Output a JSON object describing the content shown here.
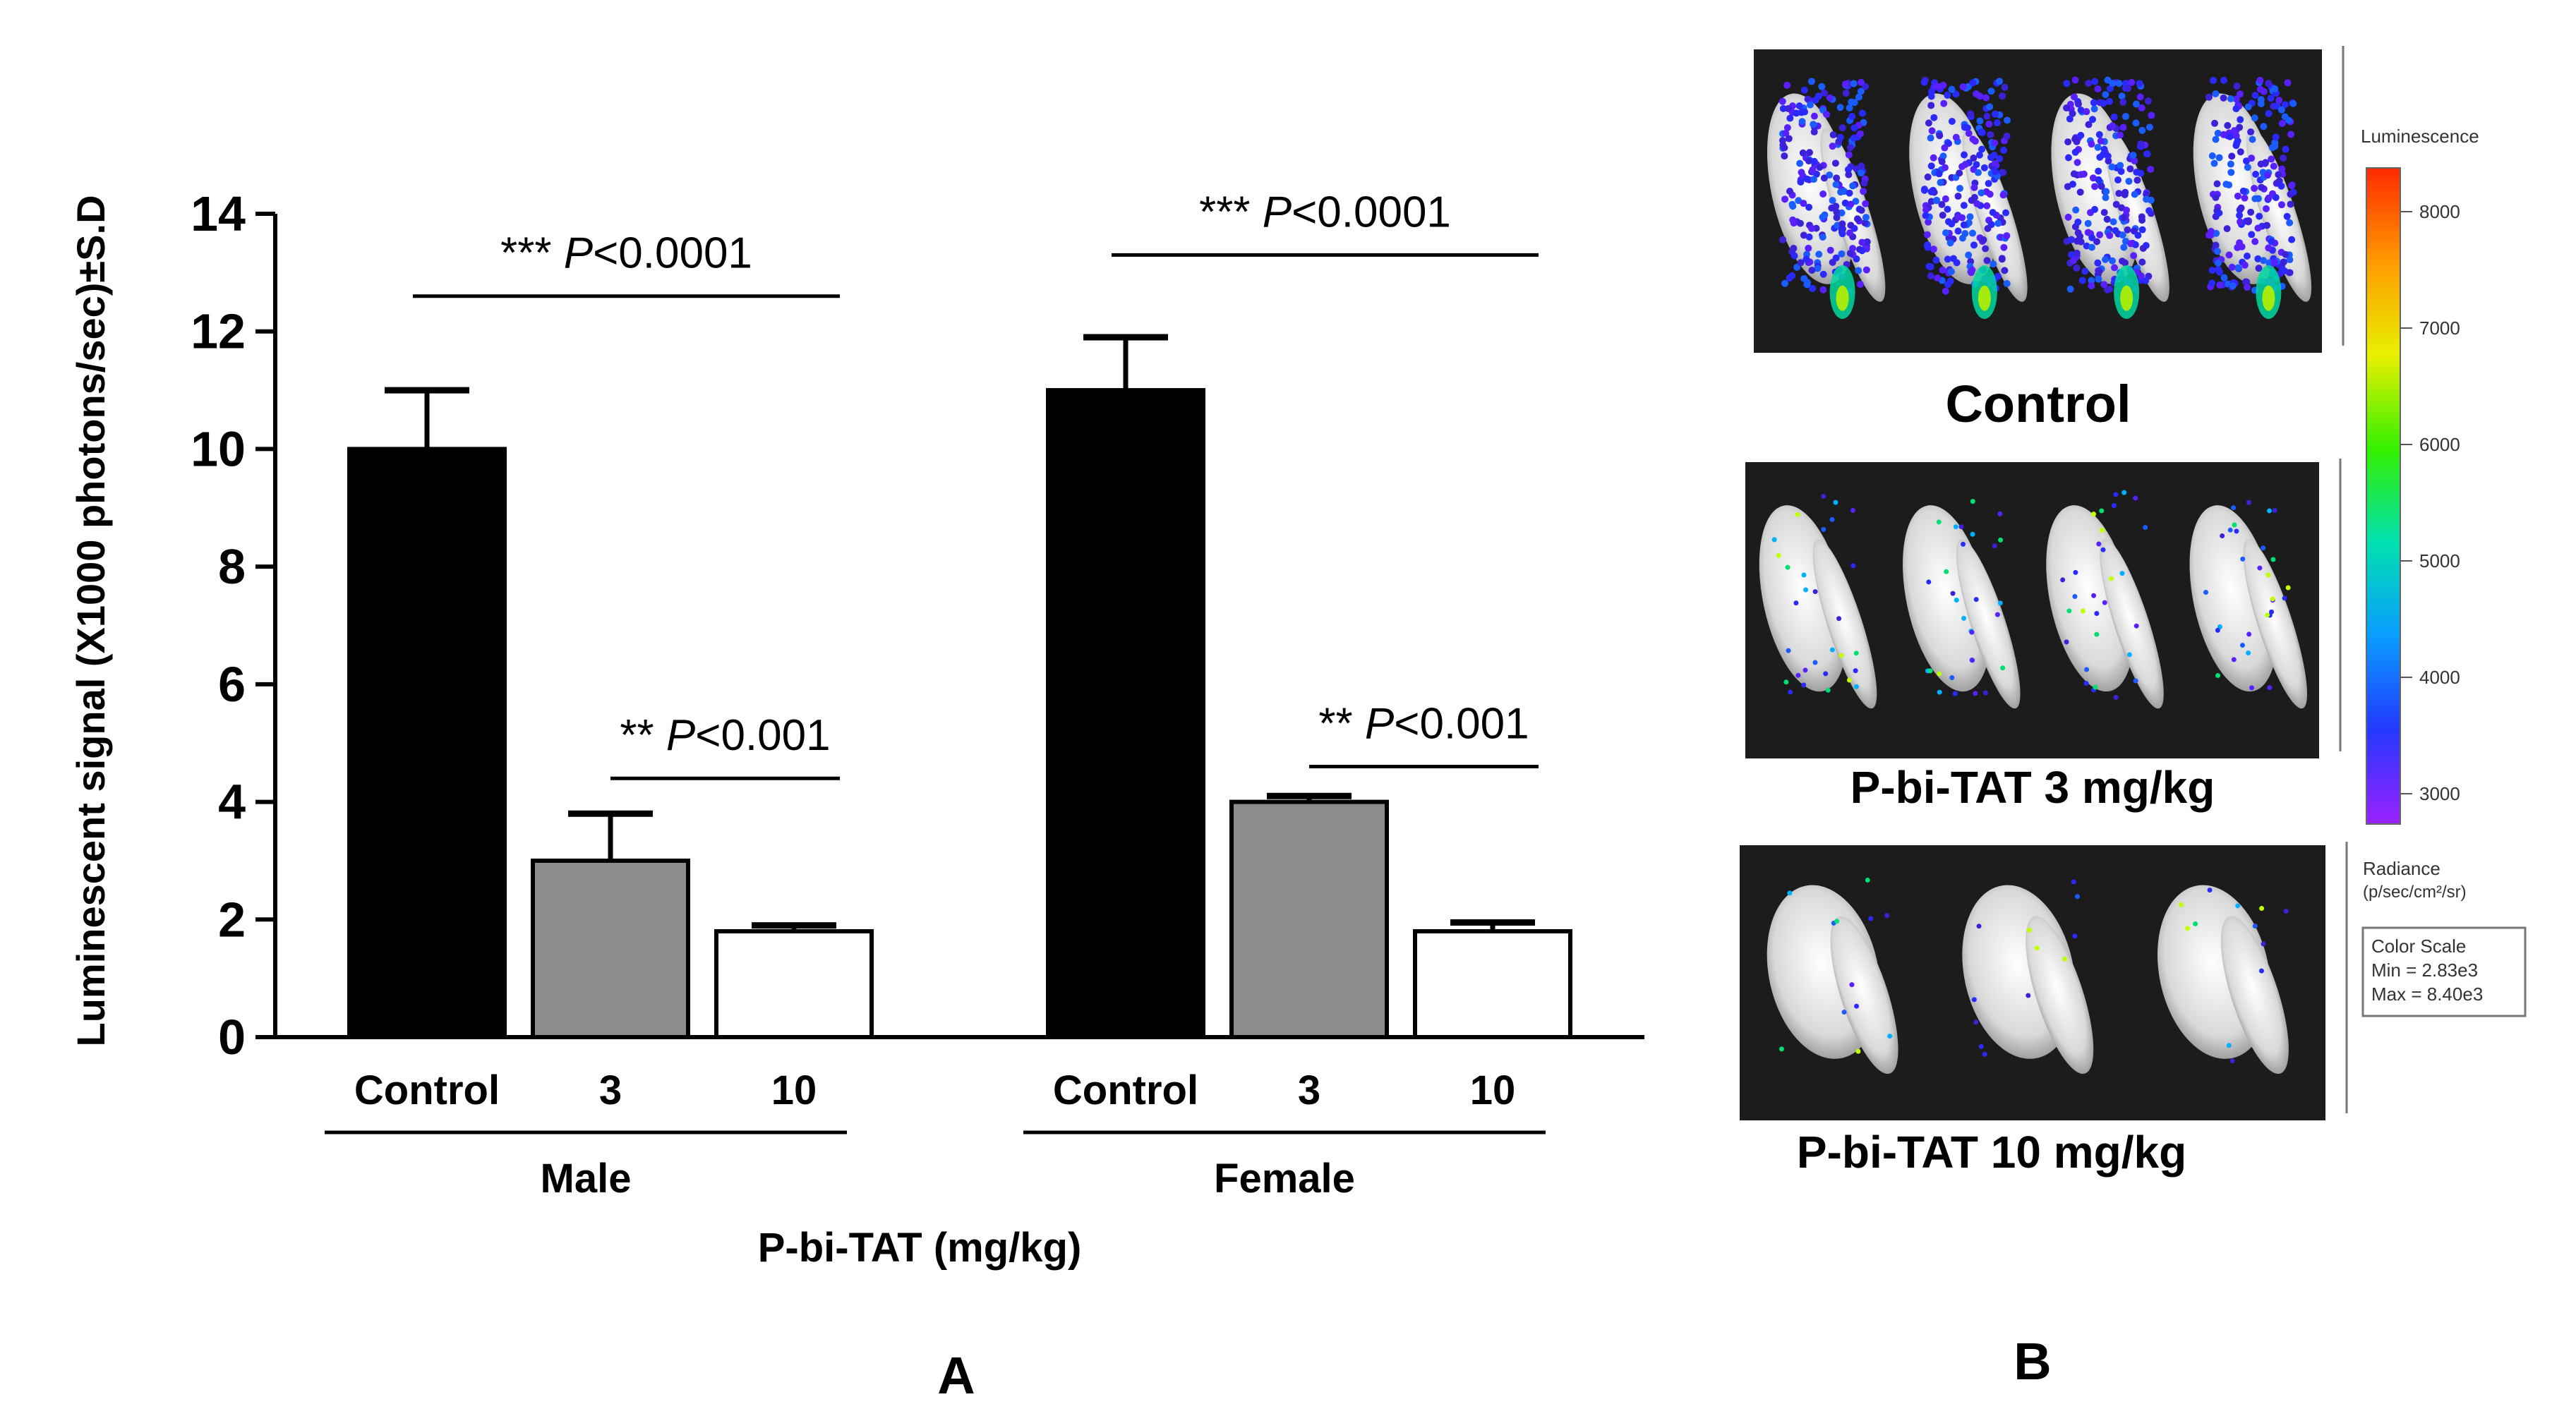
{
  "panel_a_label": "A",
  "panel_b_label": "B",
  "chart_data": {
    "type": "bar",
    "title": "",
    "ylabel": "Luminescent signal (X1000 photons/sec)±S.D",
    "xlabel": "P-bi-TAT (mg/kg)",
    "ylim": [
      0,
      14
    ],
    "yticks": [
      0,
      2,
      4,
      6,
      8,
      10,
      12,
      14
    ],
    "groups": [
      {
        "name": "Male",
        "categories": [
          "Control",
          "3",
          "10"
        ],
        "values": [
          10.0,
          3.0,
          1.8
        ],
        "errors": [
          1.0,
          0.8,
          0.1
        ],
        "fills": [
          "#000000",
          "#8c8c8c",
          "#ffffff"
        ]
      },
      {
        "name": "Female",
        "categories": [
          "Control",
          "3",
          "10"
        ],
        "values": [
          11.0,
          4.0,
          1.8
        ],
        "errors": [
          0.9,
          0.1,
          0.15
        ],
        "fills": [
          "#000000",
          "#8c8c8c",
          "#ffffff"
        ]
      }
    ],
    "annotations": [
      {
        "stars": "***",
        "p": "P",
        "text": "<0.0001",
        "from": [
          0,
          0
        ],
        "to": [
          0,
          2
        ],
        "level": 12.6
      },
      {
        "stars": "**",
        "p": "P",
        "text": "<0.001",
        "from": [
          0,
          1
        ],
        "to": [
          0,
          2
        ],
        "level": 4.4
      },
      {
        "stars": "***",
        "p": "P",
        "text": "<0.0001",
        "from": [
          1,
          0
        ],
        "to": [
          1,
          2
        ],
        "level": 13.3
      },
      {
        "stars": "**",
        "p": "P",
        "text": "<0.001",
        "from": [
          1,
          1
        ],
        "to": [
          1,
          2
        ],
        "level": 4.6
      }
    ],
    "grid": false
  },
  "images": [
    {
      "caption": "Control",
      "feet": 4,
      "signal": "high"
    },
    {
      "caption": "P-bi-TAT 3 mg/kg",
      "feet": 4,
      "signal": "low"
    },
    {
      "caption": "P-bi-TAT 10 mg/kg",
      "feet": 3,
      "signal": "very-low"
    }
  ],
  "colorbar": {
    "title": "Luminescence",
    "ticks": [
      "8000",
      "7000",
      "6000",
      "5000",
      "4000",
      "3000"
    ],
    "colors": [
      "#ff2a00",
      "#ff9a00",
      "#e8f000",
      "#34f000",
      "#00e0b0",
      "#0a9cff",
      "#2438ff",
      "#9a22ff"
    ],
    "radiance_label": "Radiance",
    "radiance_units": "(p/sec/cm²/sr)",
    "box_lines": [
      "Color Scale",
      "Min = 2.83e3",
      "Max = 8.40e3"
    ]
  }
}
